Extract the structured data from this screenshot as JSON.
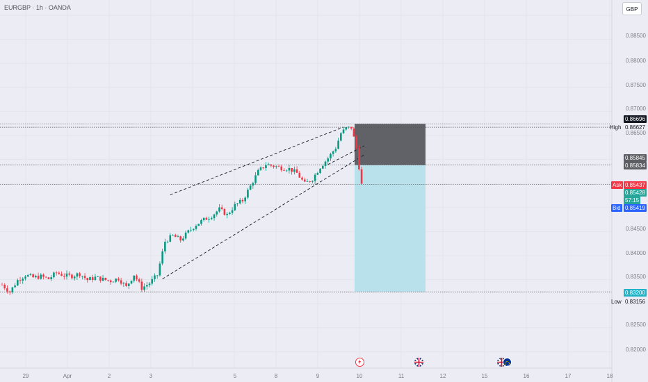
{
  "header": {
    "symbol_line": "EURGBP · 1h · OANDA"
  },
  "currency_button": "GBP",
  "y_axis": {
    "labels": [
      "0.88500",
      "0.88000",
      "0.87500",
      "0.87000",
      "0.86500",
      "0.84500",
      "0.84000",
      "0.83500",
      "0.82500",
      "0.82000"
    ]
  },
  "x_axis": {
    "labels": [
      "29",
      "Apr",
      "2",
      "3",
      "5",
      "8",
      "9",
      "10",
      "11",
      "12",
      "15",
      "16",
      "17",
      "18"
    ]
  },
  "price_tags": {
    "high_value": "0.86696",
    "high_label": "High",
    "high_price": "0.86627",
    "stop_top": "0.85845",
    "stop_bottom": "0.85834",
    "ask_label": "Ask",
    "ask_price": "0.85437",
    "last_price": "0.85428",
    "countdown": "57:15",
    "bid_label": "Bid",
    "bid_price": "0.85419",
    "target_price": "0.83200",
    "low_label": "Low",
    "low_price": "0.83156"
  },
  "events": [
    {
      "icon": "lightning-icon"
    },
    {
      "icon": "flag-uk-icon"
    },
    {
      "icon": "flag-uk-icon"
    },
    {
      "icon": "flag-eu-icon"
    }
  ],
  "colors": {
    "up": "#089981",
    "down": "#f23645",
    "short_stop_zone": "#5a5b60",
    "short_target_zone": "#b9e1ec",
    "ask": "#f23645",
    "bid": "#2962ff",
    "last": "#26a69a",
    "target_tag": "#22b3c9"
  },
  "chart_data": {
    "type": "candlestick",
    "instrument": "EURGBP",
    "timeframe": "1h",
    "close_path": [
      [
        0,
        0.8335
      ],
      [
        3,
        0.832
      ],
      [
        6,
        0.8344
      ],
      [
        9,
        0.8355
      ],
      [
        12,
        0.835
      ],
      [
        15,
        0.8352
      ],
      [
        18,
        0.8347
      ],
      [
        21,
        0.836
      ],
      [
        24,
        0.8354
      ],
      [
        27,
        0.8353
      ],
      [
        30,
        0.8358
      ],
      [
        33,
        0.8345
      ],
      [
        36,
        0.835
      ],
      [
        39,
        0.8346
      ],
      [
        42,
        0.8343
      ],
      [
        45,
        0.8348
      ],
      [
        48,
        0.833
      ],
      [
        51,
        0.8356
      ],
      [
        54,
        0.8328
      ],
      [
        57,
        0.8338
      ],
      [
        60,
        0.8355
      ],
      [
        63,
        0.8425
      ],
      [
        66,
        0.8437
      ],
      [
        69,
        0.8428
      ],
      [
        72,
        0.8445
      ],
      [
        75,
        0.846
      ],
      [
        78,
        0.847
      ],
      [
        81,
        0.8478
      ],
      [
        84,
        0.8492
      ],
      [
        87,
        0.848
      ],
      [
        90,
        0.85
      ],
      [
        93,
        0.851
      ],
      [
        96,
        0.854
      ],
      [
        99,
        0.857
      ],
      [
        102,
        0.8585
      ],
      [
        105,
        0.8582
      ],
      [
        108,
        0.8578
      ],
      [
        111,
        0.8576
      ],
      [
        114,
        0.8567
      ],
      [
        117,
        0.8545
      ],
      [
        120,
        0.8555
      ],
      [
        123,
        0.858
      ],
      [
        126,
        0.8598
      ],
      [
        129,
        0.862
      ],
      [
        131,
        0.865
      ],
      [
        133,
        0.866
      ],
      [
        135,
        0.8662
      ],
      [
        137,
        0.862
      ],
      [
        138,
        0.858
      ],
      [
        139,
        0.8543
      ]
    ],
    "trend_channel": {
      "upper": [
        [
          65,
          0.8522
        ],
        [
          132,
          0.8663
        ]
      ],
      "mid": [
        [
          126,
          0.8585
        ],
        [
          140,
          0.8624
        ]
      ],
      "lower": [
        [
          62,
          0.8347
        ],
        [
          140,
          0.8605
        ]
      ]
    },
    "short_position": {
      "entry": 0.85839,
      "stop": 0.86696,
      "target": 0.832
    },
    "high": 0.86627,
    "low": 0.83156,
    "ask": 0.85437,
    "bid": 0.85419,
    "last": 0.85428,
    "ylim": [
      0.8198,
      0.8895
    ]
  }
}
